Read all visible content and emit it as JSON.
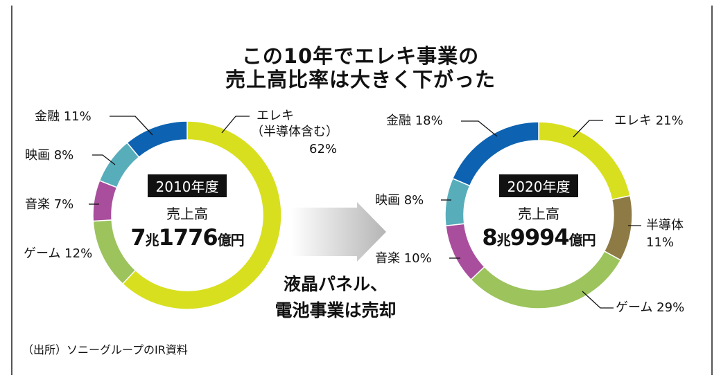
{
  "title": [
    "この10年でエレキ事業の",
    "売上高比率は大きく下がった"
  ],
  "mid_note": [
    "液晶パネル、",
    "電池事業は売却"
  ],
  "source": "（出所）ソニーグループのIR資料",
  "chart_data": [
    {
      "type": "pie",
      "donut": true,
      "title": "2010年度",
      "center_label": "売上高",
      "total": {
        "cho": "7",
        "cho_unit": "兆",
        "oku": "1776",
        "oku_unit": "億円"
      },
      "slices": [
        {
          "name": "エレキ（半導体含む）",
          "label_lines": [
            "エレキ",
            "（半導体含む）",
            "62%"
          ],
          "value": 62,
          "color": "#d8df1f"
        },
        {
          "name": "ゲーム",
          "label": "ゲーム 12%",
          "value": 12,
          "color": "#9cc35c"
        },
        {
          "name": "音楽",
          "label": "音楽 7%",
          "value": 7,
          "color": "#a94e9c"
        },
        {
          "name": "映画",
          "label": "映画 8%",
          "value": 8,
          "color": "#58adbb"
        },
        {
          "name": "金融",
          "label": "金融 11%",
          "value": 11,
          "color": "#0d63b1"
        }
      ]
    },
    {
      "type": "pie",
      "donut": true,
      "title": "2020年度",
      "center_label": "売上高",
      "total": {
        "cho": "8",
        "cho_unit": "兆",
        "oku": "9994",
        "oku_unit": "億円"
      },
      "slices": [
        {
          "name": "エレキ",
          "label": "エレキ 21%",
          "value": 21,
          "color": "#d8df1f"
        },
        {
          "name": "半導体",
          "label_lines": [
            "半導体",
            "11%"
          ],
          "value": 11,
          "color": "#8e7a45"
        },
        {
          "name": "ゲーム",
          "label": "ゲーム 29%",
          "value": 29,
          "color": "#9cc35c"
        },
        {
          "name": "音楽",
          "label": "音楽 10%",
          "value": 10,
          "color": "#a94e9c"
        },
        {
          "name": "映画",
          "label": "映画 8%",
          "value": 8,
          "color": "#58adbb"
        },
        {
          "name": "金融",
          "label": "金融 18%",
          "value": 18,
          "color": "#0d63b1"
        }
      ]
    }
  ]
}
